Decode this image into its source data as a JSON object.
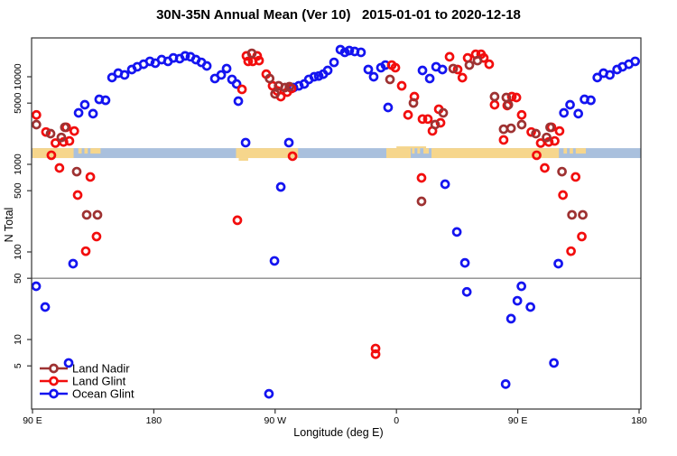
{
  "title": "30N-35N Annual Mean (Ver 10)   2015-01-01 to 2020-12-18",
  "legend": {
    "items": [
      {
        "label": "Land Nadir",
        "color": "#9E3232"
      },
      {
        "label": "Land Glint",
        "color": "#F20D0D"
      },
      {
        "label": "Ocean Glint",
        "color": "#1414F0"
      }
    ]
  },
  "chart_data": {
    "type": "scatter",
    "title": "30N-35N Annual Mean (Ver 10)   2015-01-01 to 2020-12-18",
    "xlabel": "Longitude (deg E)",
    "ylabel": "N Total",
    "x_axis": {
      "start_lon": 90,
      "span_deg": 450,
      "tick_offsets": [
        0,
        90,
        180,
        270,
        360,
        450
      ],
      "tick_labels": [
        "90 E",
        "180",
        "90 W",
        "0",
        "90 E",
        "180"
      ],
      "note": "longitude axis wraps eastward from 90E around the globe to 180; the 90E-180 segment is drawn twice"
    },
    "y_axis": {
      "scale": "log",
      "ticks": [
        5,
        10,
        50,
        100,
        500,
        1000,
        5000,
        10000
      ],
      "range": [
        1.6,
        27700
      ]
    },
    "reference_line_value": 50,
    "reference_line_color": "#8A8A8A",
    "map_band": {
      "value_range": [
        1180,
        1530
      ],
      "ocean_color": "#A9C0DD",
      "land_color": "#F6D68C",
      "land_segments_lon": [
        [
          -119,
          -73
        ],
        [
          -7.5,
          10.6
        ],
        [
          26,
          120.5
        ]
      ],
      "islands_lon": [
        [
          124,
          126.5
        ],
        [
          128.5,
          131
        ],
        [
          133,
          140.5
        ],
        [
          11.5,
          13.5
        ],
        [
          15.5,
          17.5
        ],
        [
          20,
          24
        ]
      ],
      "coast_bump_north_lon": [
        0,
        22
      ],
      "coast_tail_south_lon": [
        -117,
        -110
      ]
    },
    "series": [
      {
        "name": "Ocean Glint",
        "color": "#1414F0",
        "points": [
          [
            149,
            9800
          ],
          [
            153.6,
            11000
          ],
          [
            158.3,
            10500
          ],
          [
            163.7,
            12100
          ],
          [
            167.7,
            13000
          ],
          [
            172.4,
            13900
          ],
          [
            177.1,
            15000
          ],
          [
            -178.9,
            14300
          ],
          [
            -174.2,
            15700
          ],
          [
            -169.5,
            15000
          ],
          [
            -165.5,
            16400
          ],
          [
            -160.8,
            16100
          ],
          [
            -156.8,
            17300
          ],
          [
            -152.8,
            16900
          ],
          [
            -148.8,
            15700
          ],
          [
            -144.7,
            14600
          ],
          [
            -140.7,
            13300
          ],
          [
            -134.7,
            9550
          ],
          [
            -130,
            10500
          ],
          [
            -126,
            12400
          ],
          [
            -122,
            9330
          ],
          [
            -118.6,
            8270
          ],
          [
            -117.3,
            5270
          ],
          [
            -111.9,
            1770
          ],
          [
            -85.8,
            552
          ],
          [
            -90.5,
            79
          ],
          [
            -94.6,
            2.4
          ],
          [
            -79.8,
            1770
          ],
          [
            -76.4,
            7520
          ],
          [
            -72.4,
            7880
          ],
          [
            -68.4,
            8270
          ],
          [
            -65,
            9330
          ],
          [
            -61,
            10000
          ],
          [
            -57.7,
            10200
          ],
          [
            -54.3,
            10700
          ],
          [
            -51,
            11800
          ],
          [
            -46.3,
            14600
          ],
          [
            -41.6,
            20400
          ],
          [
            -38.3,
            19000
          ],
          [
            -35,
            19900
          ],
          [
            -31,
            19450
          ],
          [
            -26.3,
            19000
          ],
          [
            -20.9,
            12100
          ],
          [
            -16.9,
            10000
          ],
          [
            -11.5,
            12700
          ],
          [
            -8.2,
            13600
          ],
          [
            -6.2,
            4460
          ],
          [
            19.3,
            11800
          ],
          [
            24.7,
            9550
          ],
          [
            29.4,
            13000
          ],
          [
            34.1,
            12100
          ],
          [
            36.1,
            593
          ],
          [
            44.8,
            169
          ],
          [
            50.8,
            75
          ],
          [
            52.2,
            35
          ],
          [
            81,
            3.1
          ],
          [
            85,
            17.3
          ],
          [
            89.7,
            27.7
          ],
          [
            92.7,
            40.6
          ],
          [
            99.4,
            23.5
          ],
          [
            116.8,
            5.4
          ],
          [
            120.1,
            73.5
          ],
          [
            124.2,
            3870
          ],
          [
            128.8,
            4790
          ],
          [
            134.9,
            3790
          ],
          [
            139.5,
            5520
          ],
          [
            144.2,
            5390
          ]
        ]
      },
      {
        "name": "Land Glint",
        "color": "#F20D0D",
        "points": [
          [
            85.6,
            5930
          ],
          [
            89,
            5790
          ],
          [
            92.9,
            3670
          ],
          [
            100,
            2340
          ],
          [
            104,
            1270
          ],
          [
            107,
            1750
          ],
          [
            113,
            1800
          ],
          [
            117.4,
            1850
          ],
          [
            115,
            2650
          ],
          [
            121,
            2400
          ],
          [
            110,
            910
          ],
          [
            132.9,
            718
          ],
          [
            123.5,
            446
          ],
          [
            137.5,
            150
          ],
          [
            129.5,
            102
          ],
          [
            -114.6,
            7180
          ],
          [
            -111.3,
            17300
          ],
          [
            -110,
            15000
          ],
          [
            -106.6,
            15000
          ],
          [
            -103.3,
            17300
          ],
          [
            -101.9,
            15300
          ],
          [
            -96.6,
            10700
          ],
          [
            -91.9,
            7880
          ],
          [
            -88.5,
            6900
          ],
          [
            -85.8,
            5930
          ],
          [
            -81.1,
            6680
          ],
          [
            -77.8,
            7350
          ],
          [
            -77.1,
            1240
          ],
          [
            -118,
            230
          ],
          [
            -3.5,
            13600
          ],
          [
            -0.8,
            12700
          ],
          [
            3.9,
            7880
          ],
          [
            8.6,
            3670
          ],
          [
            13.3,
            5930
          ],
          [
            19.3,
            3290
          ],
          [
            23.3,
            3290
          ],
          [
            26.7,
            2410
          ],
          [
            31.4,
            4260
          ],
          [
            32.7,
            2980
          ],
          [
            39.4,
            16900
          ],
          [
            45.4,
            12100
          ],
          [
            48.9,
            9770
          ],
          [
            52.8,
            16400
          ],
          [
            58.8,
            18050
          ],
          [
            62.8,
            18050
          ],
          [
            64.8,
            16400
          ],
          [
            68.8,
            13900
          ],
          [
            72.8,
            4790
          ],
          [
            82.2,
            4690
          ],
          [
            79.5,
            1900
          ],
          [
            18.6,
            700
          ],
          [
            -15.5,
            7.9
          ],
          [
            -15.5,
            6.8
          ]
        ]
      },
      {
        "name": "Land Nadir",
        "color": "#9E3232",
        "points": [
          [
            83,
            4790
          ],
          [
            85,
            2580
          ],
          [
            92.9,
            2840
          ],
          [
            103.4,
            2240
          ],
          [
            111.4,
            2030
          ],
          [
            114,
            2650
          ],
          [
            122.8,
            826
          ],
          [
            130.2,
            265
          ],
          [
            138.2,
            265
          ],
          [
            -107.3,
            18500
          ],
          [
            -94.1,
            9550
          ],
          [
            -90.1,
            6370
          ],
          [
            -87.4,
            7880
          ],
          [
            -82.7,
            7520
          ],
          [
            -79.4,
            7700
          ],
          [
            -4.8,
            9330
          ],
          [
            12.6,
            5020
          ],
          [
            28.7,
            2840
          ],
          [
            34.7,
            3870
          ],
          [
            42.1,
            12400
          ],
          [
            54.1,
            13600
          ],
          [
            60.1,
            15300
          ],
          [
            72.8,
            5930
          ],
          [
            81.5,
            5790
          ],
          [
            79.5,
            2520
          ],
          [
            18.6,
            378
          ]
        ]
      }
    ]
  }
}
